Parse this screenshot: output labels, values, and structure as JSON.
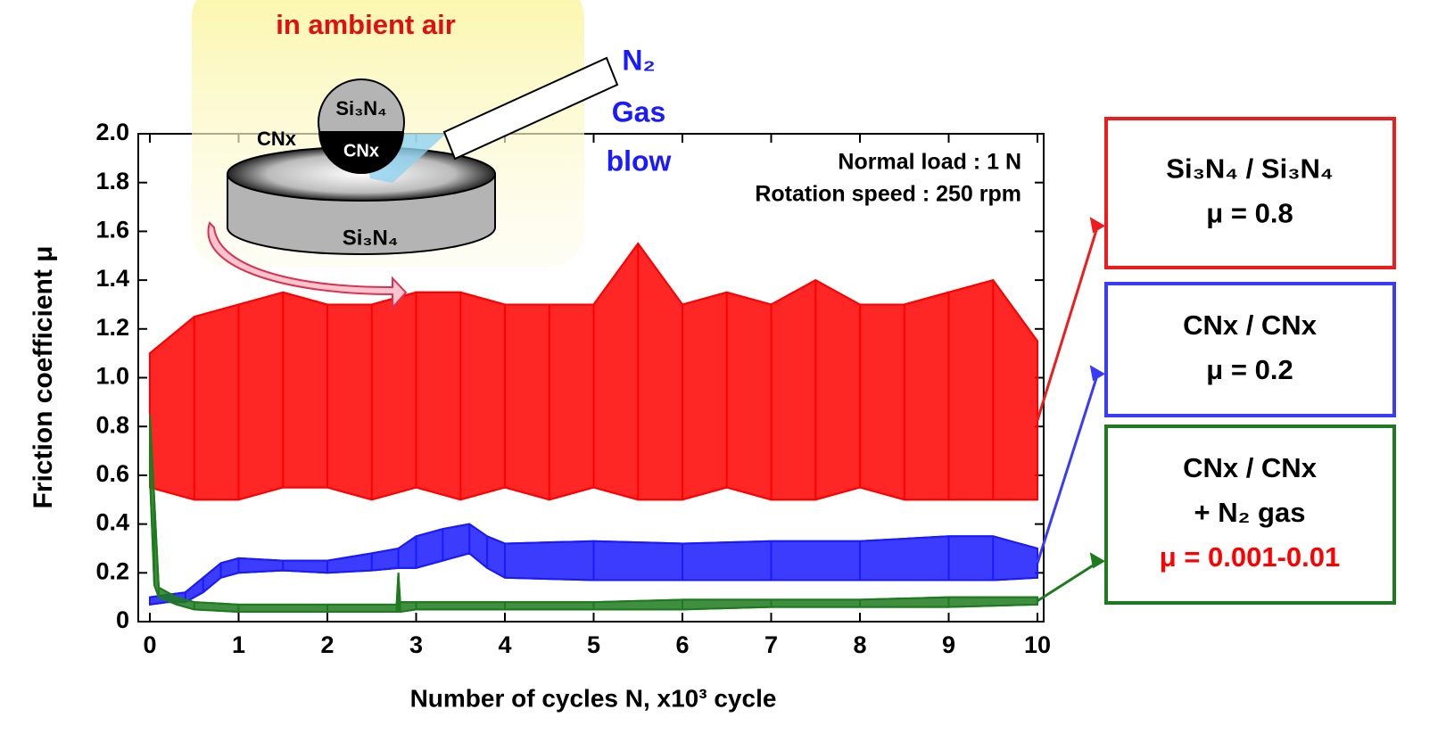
{
  "chart_data": {
    "type": "band",
    "xlabel": "Number of cycles N, x10³ cycle",
    "ylabel": "Friction coefficient μ",
    "xlim": [
      0,
      10
    ],
    "ylim": [
      0,
      2
    ],
    "xticks": [
      0,
      1,
      2,
      3,
      4,
      5,
      6,
      7,
      8,
      9,
      10
    ],
    "yticks": [
      0,
      {
        "value": 0.2,
        "label": "0.2"
      },
      {
        "value": 0.4,
        "label": "0.4"
      },
      {
        "value": 0.6,
        "label": "0.6"
      },
      {
        "value": 0.8,
        "label": "0.8"
      },
      {
        "value": 1,
        "label": "1.0"
      },
      {
        "value": 1.2,
        "label": "1.2"
      },
      {
        "value": 1.4,
        "label": "1.4"
      },
      {
        "value": 1.6,
        "label": "1.6"
      },
      {
        "value": 1.8,
        "label": "1.8"
      },
      {
        "value": 2,
        "label": "2.0"
      }
    ],
    "series": [
      {
        "color": "#ff0000",
        "x": [
          0,
          0.5,
          1,
          1.5,
          2,
          2.5,
          3,
          3.5,
          4,
          4.5,
          5,
          5.5,
          6,
          6.5,
          7,
          7.5,
          8,
          8.5,
          9,
          9.5,
          10
        ],
        "low": [
          0.55,
          0.5,
          0.5,
          0.55,
          0.55,
          0.5,
          0.55,
          0.5,
          0.55,
          0.5,
          0.55,
          0.5,
          0.5,
          0.55,
          0.5,
          0.5,
          0.55,
          0.5,
          0.5,
          0.5,
          0.5
        ],
        "high": [
          1.1,
          1.25,
          1.3,
          1.35,
          1.3,
          1.3,
          1.35,
          1.35,
          1.3,
          1.3,
          1.3,
          1.55,
          1.3,
          1.35,
          1.3,
          1.4,
          1.3,
          1.3,
          1.35,
          1.4,
          1.15
        ]
      },
      {
        "color": "#1a1aff",
        "x": [
          0,
          0.2,
          0.4,
          0.6,
          0.8,
          1,
          1.5,
          2,
          2.5,
          2.8,
          3,
          3.3,
          3.6,
          3.8,
          4,
          5,
          6,
          7,
          8,
          9,
          9.5,
          10
        ],
        "low": [
          0.07,
          0.08,
          0.08,
          0.12,
          0.18,
          0.2,
          0.21,
          0.2,
          0.21,
          0.22,
          0.22,
          0.25,
          0.28,
          0.22,
          0.18,
          0.17,
          0.17,
          0.17,
          0.17,
          0.17,
          0.17,
          0.18
        ],
        "high": [
          0.1,
          0.11,
          0.12,
          0.18,
          0.24,
          0.26,
          0.25,
          0.25,
          0.28,
          0.3,
          0.35,
          0.38,
          0.4,
          0.35,
          0.32,
          0.33,
          0.32,
          0.33,
          0.33,
          0.35,
          0.35,
          0.3
        ]
      },
      {
        "color": "#1e7a1e",
        "x": [
          0,
          0.05,
          0.1,
          0.3,
          0.5,
          1,
          2,
          2.78,
          2.8,
          2.82,
          3,
          4,
          5,
          6,
          7,
          8,
          9,
          10
        ],
        "low": [
          0.6,
          0.15,
          0.1,
          0.07,
          0.05,
          0.04,
          0.04,
          0.04,
          0.04,
          0.04,
          0.05,
          0.05,
          0.05,
          0.05,
          0.06,
          0.06,
          0.06,
          0.07
        ],
        "high": [
          0.85,
          0.5,
          0.14,
          0.1,
          0.08,
          0.07,
          0.07,
          0.07,
          0.2,
          0.08,
          0.08,
          0.08,
          0.08,
          0.09,
          0.09,
          0.09,
          0.1,
          0.1
        ]
      }
    ],
    "conditions": [
      "Normal load : 1 N",
      "Rotation speed : 250 rpm"
    ],
    "setup": {
      "environment": "in ambient air",
      "gas": [
        "N₂",
        "Gas",
        "blow"
      ],
      "ball": "Si₃N₄",
      "ball_coating": "CNx",
      "disk_coating": "CNx",
      "disk": "Si₃N₄"
    },
    "boxes": [
      {
        "lines": [
          "Si₃N₄ / Si₃N₄",
          "μ = 0.8"
        ],
        "color": "#ee1c1c"
      },
      {
        "lines": [
          "CNx / CNx",
          "μ = 0.2"
        ],
        "color": "#3a3aff"
      },
      {
        "lines": [
          "CNx / CNx",
          "+ N₂ gas",
          "μ = 0.001-0.01"
        ],
        "color": "#1e7a1e",
        "emphasis_color": "#ff0000"
      }
    ]
  }
}
